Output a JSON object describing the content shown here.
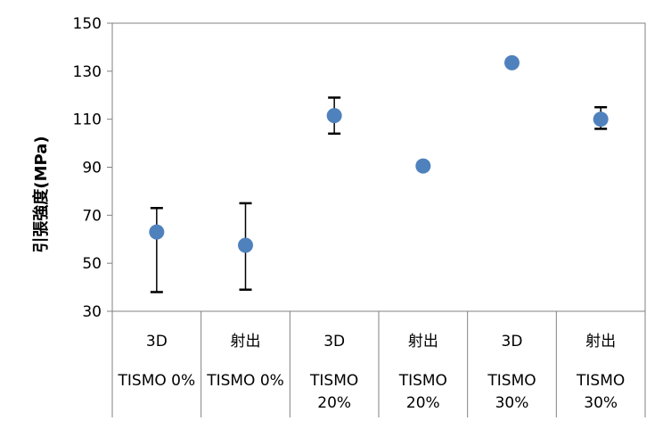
{
  "chart_data": {
    "type": "scatter",
    "ylabel": "引張強度(MPa)",
    "ylim": [
      30,
      150
    ],
    "yticks": [
      30,
      50,
      70,
      90,
      110,
      130,
      150
    ],
    "grid": false,
    "legend": "none",
    "marker_color": "#4F81BD",
    "categories": [
      {
        "method": "3D",
        "material": [
          "TISMO 0%"
        ]
      },
      {
        "method": "射出",
        "material": [
          "TISMO 0%"
        ]
      },
      {
        "method": "3D",
        "material": [
          "TISMO",
          "20%"
        ]
      },
      {
        "method": "射出",
        "material": [
          "TISMO",
          "20%"
        ]
      },
      {
        "method": "3D",
        "material": [
          "TISMO",
          "30%"
        ]
      },
      {
        "method": "射出",
        "material": [
          "TISMO",
          "30%"
        ]
      }
    ],
    "series": [
      {
        "values": [
          63,
          57.5,
          111.5,
          90.5,
          133.5,
          110
        ],
        "error_low": [
          38,
          39,
          104,
          89.5,
          132.5,
          106
        ],
        "error_high": [
          73,
          75,
          119,
          92,
          135,
          115
        ]
      }
    ]
  }
}
